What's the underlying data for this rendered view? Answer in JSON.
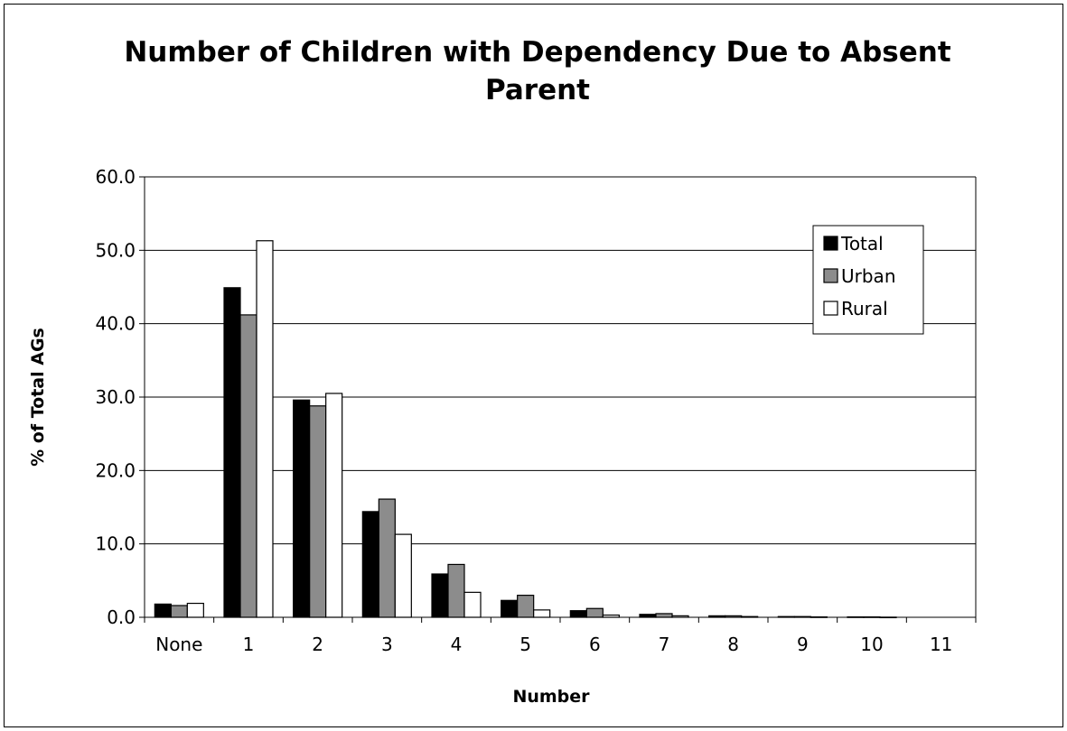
{
  "chart_data": {
    "type": "bar",
    "title_line1": "Number of Children with Dependency Due to Absent",
    "title_line2": "Parent",
    "xlabel": "Number",
    "ylabel": "% of Total AGs",
    "categories": [
      "None",
      "1",
      "2",
      "3",
      "4",
      "5",
      "6",
      "7",
      "8",
      "9",
      "10",
      "11"
    ],
    "ylim": [
      0,
      60
    ],
    "yticks": [
      "0.0",
      "10.0",
      "20.0",
      "30.0",
      "40.0",
      "50.0",
      "60.0"
    ],
    "grid": true,
    "legend_position": "top-right",
    "series": [
      {
        "name": "Total",
        "color": "#000000",
        "values": [
          1.8,
          44.9,
          29.6,
          14.4,
          5.9,
          2.3,
          0.9,
          0.4,
          0.2,
          0.1,
          0.05,
          0.0
        ]
      },
      {
        "name": "Urban",
        "color": "#8c8c8c",
        "values": [
          1.6,
          41.2,
          28.8,
          16.1,
          7.2,
          3.0,
          1.2,
          0.5,
          0.2,
          0.1,
          0.05,
          0.0
        ]
      },
      {
        "name": "Rural",
        "color": "#ffffff",
        "values": [
          1.9,
          51.3,
          30.5,
          11.3,
          3.4,
          1.0,
          0.3,
          0.2,
          0.1,
          0.05,
          0.02,
          0.0
        ]
      }
    ]
  }
}
